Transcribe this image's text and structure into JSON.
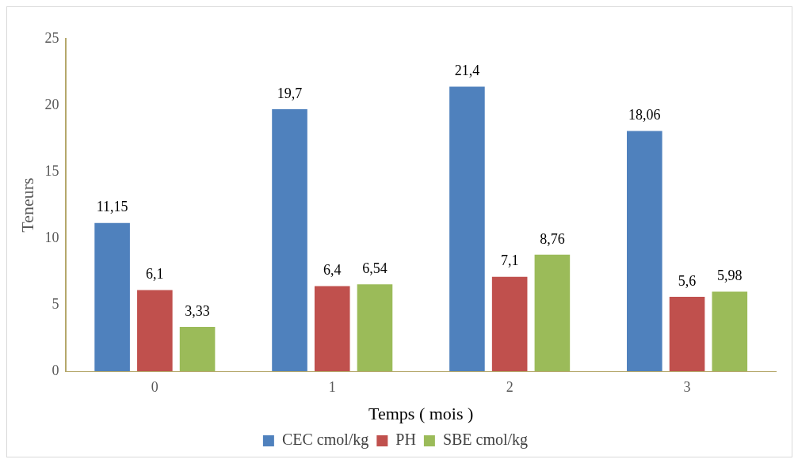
{
  "chart_data": {
    "type": "bar",
    "xlabel": "Temps ( mois )",
    "ylabel": "Teneurs",
    "categories": [
      "0",
      "1",
      "2",
      "3"
    ],
    "series": [
      {
        "name": "CEC cmol/kg",
        "color": "#4f81bd",
        "values": [
          11.15,
          19.7,
          21.4,
          18.06
        ],
        "value_labels": [
          "11,15",
          "19,7",
          "21,4",
          "18,06"
        ]
      },
      {
        "name": "PH",
        "color": "#c0504d",
        "values": [
          6.1,
          6.4,
          7.1,
          5.6
        ],
        "value_labels": [
          "6,1",
          "6,4",
          "7,1",
          "5,6"
        ]
      },
      {
        "name": "SBE cmol/kg",
        "color": "#9bbb59",
        "values": [
          3.33,
          6.54,
          8.76,
          5.98
        ],
        "value_labels": [
          "3,33",
          "6,54",
          "8,76",
          "5,98"
        ]
      }
    ],
    "ylim": [
      0,
      25
    ],
    "yticks": [
      0,
      5,
      10,
      15,
      20,
      25
    ],
    "grid": false,
    "legend": "bottom"
  }
}
